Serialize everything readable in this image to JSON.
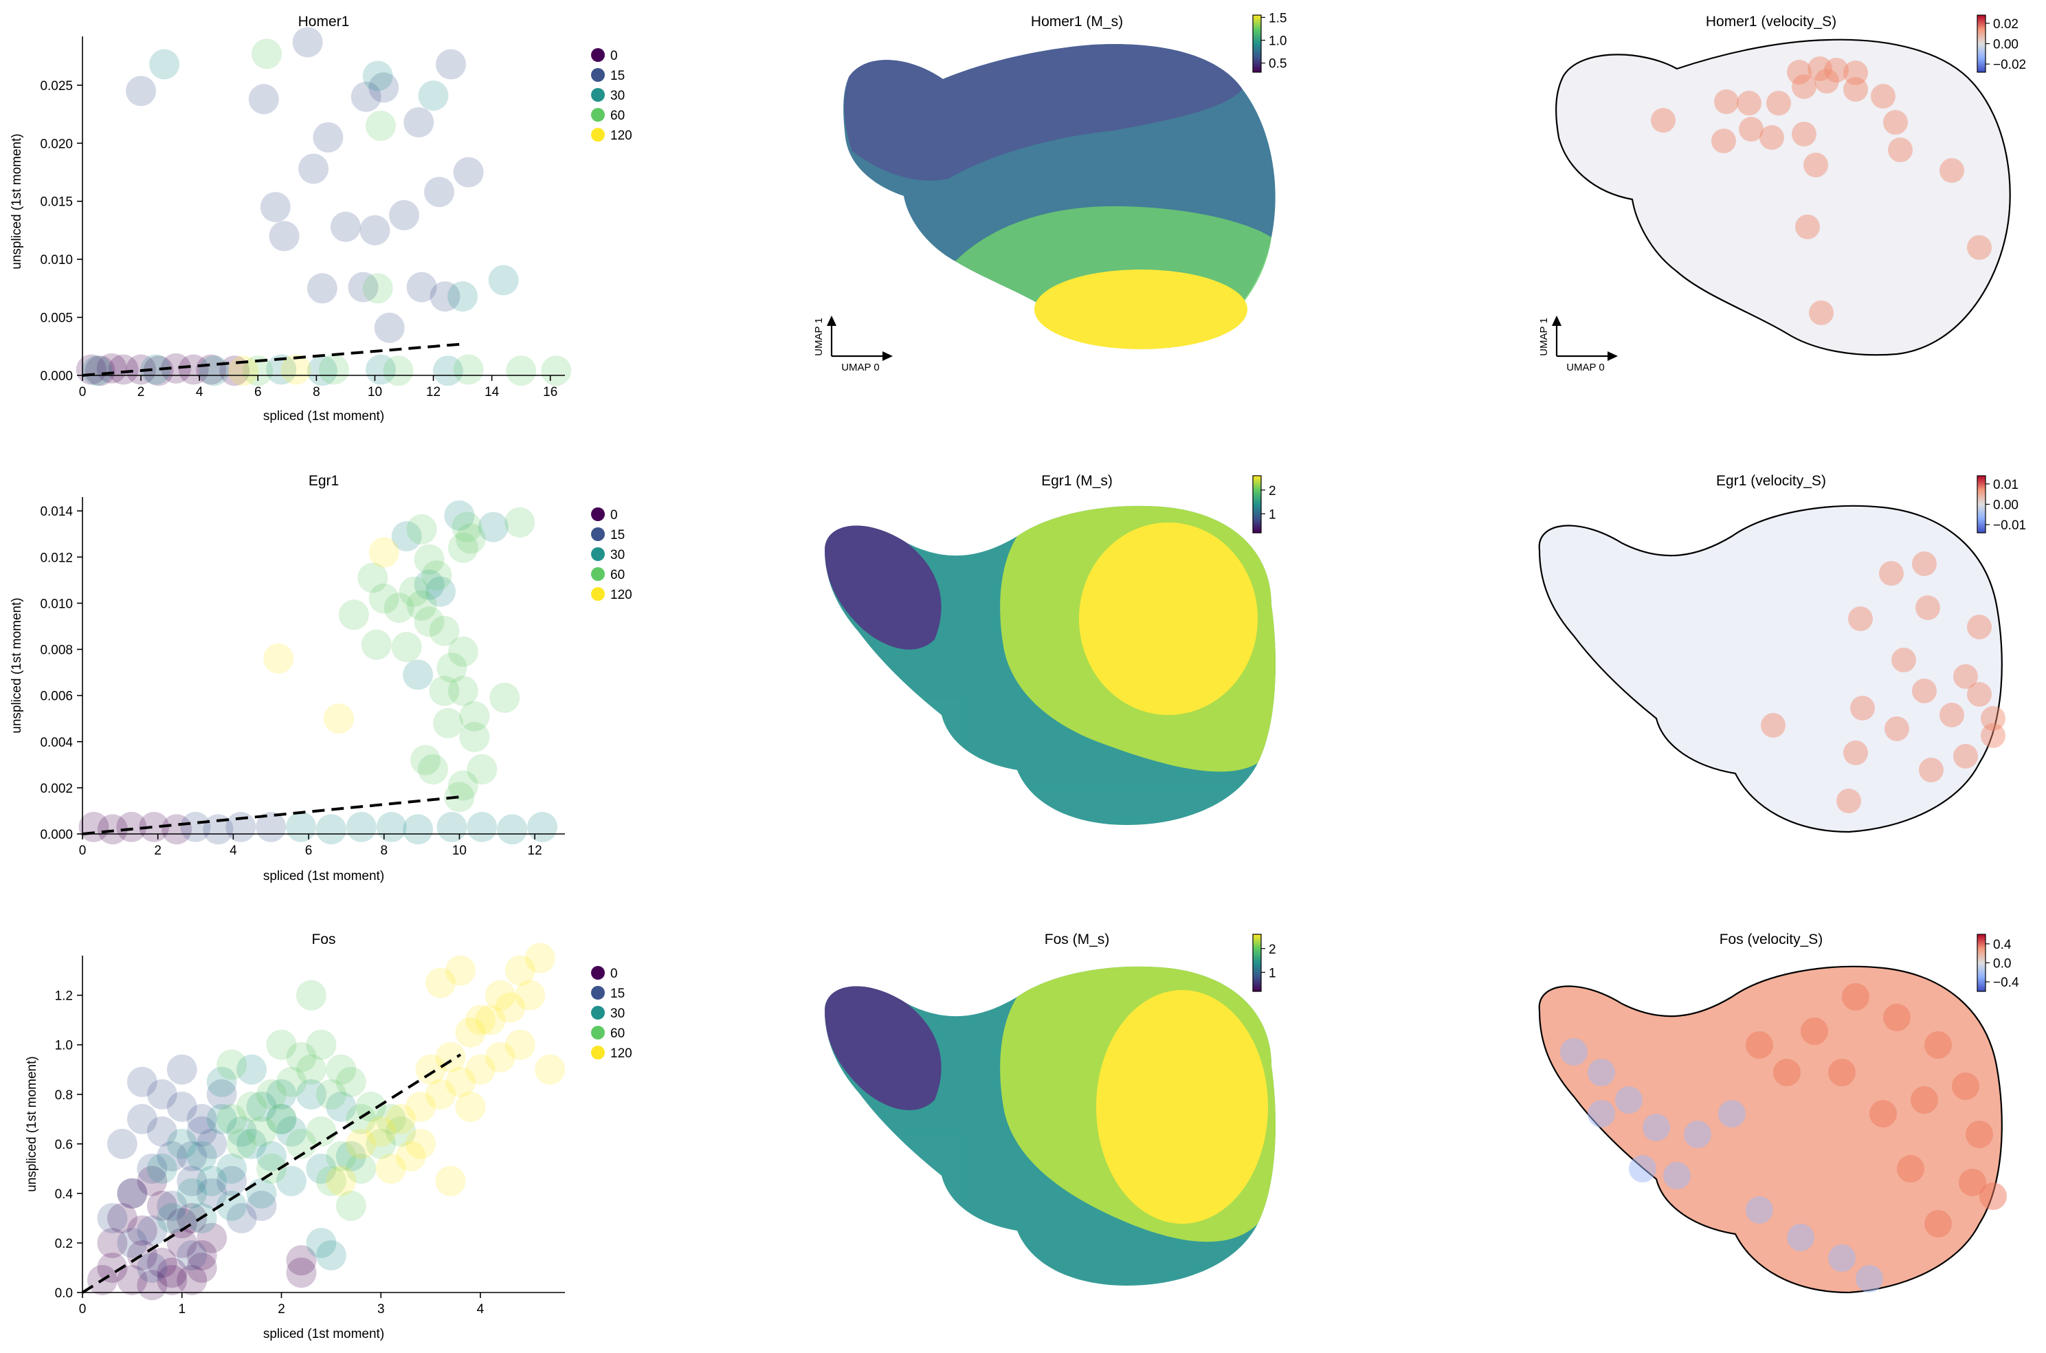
{
  "chart_data": [
    {
      "type": "scatter",
      "title": "Homer1",
      "xlabel": "spliced (1st moment)",
      "ylabel": "unspliced (1st moment)",
      "xlim": [
        0,
        16.5
      ],
      "ylim": [
        0,
        0.0292
      ],
      "xticks": [
        0,
        2,
        4,
        6,
        8,
        10,
        12,
        14,
        16
      ],
      "xtick_labels": [
        "0",
        "2",
        "4",
        "6",
        "8",
        "10",
        "12",
        "14",
        "16"
      ],
      "yticks": [
        0,
        0.005,
        0.01,
        0.015,
        0.02,
        0.025
      ],
      "ytick_labels": [
        "0.000",
        "0.005",
        "0.010",
        "0.015",
        "0.020",
        "0.025"
      ],
      "legend": {
        "placement": "outside-right",
        "entries": [
          "0",
          "15",
          "30",
          "60",
          "120"
        ],
        "colors": [
          "#440154",
          "#3b528b",
          "#21918c",
          "#5ec962",
          "#fde725"
        ]
      },
      "fit_line": {
        "style": "dashed",
        "color": "#000000",
        "x": [
          0,
          13.0
        ],
        "y": [
          0,
          0.0027
        ]
      },
      "series": [
        {
          "name": "0",
          "color": "#440154",
          "x": [
            0.3,
            0.6,
            1.0,
            1.4,
            2.0,
            2.6,
            3.2,
            3.8,
            4.4,
            5.2
          ],
          "y": [
            0.0005,
            0.0004,
            0.0006,
            0.0005,
            0.0005,
            0.0004,
            0.0006,
            0.0005,
            0.0005,
            0.0004
          ]
        },
        {
          "name": "15",
          "color": "#3b528b",
          "x": [
            2.0,
            6.2,
            6.6,
            7.9,
            9.0,
            10.0,
            11.0,
            12.2,
            8.2,
            9.6,
            10.5,
            11.6,
            12.4,
            6.9,
            7.7,
            10.3,
            11.5,
            8.4,
            9.7,
            13.2,
            12.6
          ],
          "y": [
            0.0245,
            0.0238,
            0.0145,
            0.0178,
            0.0128,
            0.0125,
            0.0138,
            0.0158,
            0.0075,
            0.0076,
            0.0041,
            0.0076,
            0.0068,
            0.012,
            0.0287,
            0.0248,
            0.0218,
            0.0205,
            0.024,
            0.0175,
            0.0268
          ]
        },
        {
          "name": "30",
          "color": "#21918c",
          "x": [
            0.5,
            2.5,
            4.5,
            6.8,
            8.2,
            10.2,
            12.5,
            2.8,
            10.1,
            12.0,
            13.0,
            14.4
          ],
          "y": [
            0.0004,
            0.0005,
            0.0004,
            0.0005,
            0.0004,
            0.0005,
            0.0004,
            0.0268,
            0.0258,
            0.0241,
            0.0068,
            0.0082
          ]
        },
        {
          "name": "60",
          "color": "#5ec962",
          "x": [
            6.0,
            8.6,
            10.8,
            13.2,
            15.0,
            16.2,
            6.3,
            10.2,
            10.1
          ],
          "y": [
            0.0004,
            0.0005,
            0.0004,
            0.0005,
            0.0004,
            0.0004,
            0.0277,
            0.0215,
            0.0075
          ]
        },
        {
          "name": "120",
          "color": "#fde725",
          "x": [
            5.5,
            7.3
          ],
          "y": [
            0.0004,
            0.0005
          ]
        }
      ]
    },
    {
      "type": "scatter",
      "title": "Homer1 (M_s)",
      "axis_labels": [
        "UMAP 0",
        "UMAP 1"
      ],
      "colorbar": {
        "colormap": "viridis",
        "range": [
          0.3,
          1.55
        ],
        "ticks": [
          0.5,
          1.0,
          1.5
        ],
        "tick_labels": [
          "0.5",
          "1.0",
          "1.5"
        ]
      }
    },
    {
      "type": "scatter",
      "title": "Homer1 (velocity_S)",
      "axis_labels": [
        "UMAP 0",
        "UMAP 1"
      ],
      "colorbar": {
        "colormap": "coolwarm",
        "range": [
          -0.028,
          0.028
        ],
        "ticks": [
          0.02,
          0.0,
          -0.02
        ],
        "tick_labels": [
          "0.02",
          "0.00",
          "−0.02"
        ]
      }
    },
    {
      "type": "scatter",
      "title": "Egr1",
      "xlabel": "spliced (1st moment)",
      "ylabel": "unspliced (1st moment)",
      "xlim": [
        0,
        12.8
      ],
      "ylim": [
        0,
        0.0146
      ],
      "xticks": [
        0,
        2,
        4,
        6,
        8,
        10,
        12
      ],
      "xtick_labels": [
        "0",
        "2",
        "4",
        "6",
        "8",
        "10",
        "12"
      ],
      "yticks": [
        0,
        0.002,
        0.004,
        0.006,
        0.008,
        0.01,
        0.012,
        0.014
      ],
      "ytick_labels": [
        "0.000",
        "0.002",
        "0.004",
        "0.006",
        "0.008",
        "0.010",
        "0.012",
        "0.014"
      ],
      "legend": {
        "placement": "outside-right",
        "entries": [
          "0",
          "15",
          "30",
          "60",
          "120"
        ],
        "colors": [
          "#440154",
          "#3b528b",
          "#21918c",
          "#5ec962",
          "#fde725"
        ]
      },
      "fit_line": {
        "style": "dashed",
        "color": "#000000",
        "x": [
          0,
          10.0
        ],
        "y": [
          0,
          0.0016
        ]
      },
      "series": [
        {
          "name": "0",
          "color": "#440154",
          "x": [
            0.3,
            0.8,
            1.3,
            1.9,
            2.5
          ],
          "y": [
            0.0003,
            0.0002,
            0.0003,
            0.0003,
            0.0002
          ]
        },
        {
          "name": "15",
          "color": "#3b528b",
          "x": [
            3.0,
            3.6,
            4.2,
            5.0
          ],
          "y": [
            0.0003,
            0.0002,
            0.0003,
            0.0003
          ]
        },
        {
          "name": "30",
          "color": "#21918c",
          "x": [
            5.8,
            6.6,
            7.4,
            8.2,
            8.9,
            9.8,
            10.6,
            11.4,
            12.2,
            8.6,
            9.2,
            10.0,
            10.9,
            8.9,
            9.5
          ],
          "y": [
            0.0003,
            0.0002,
            0.0003,
            0.0003,
            0.0002,
            0.0003,
            0.0003,
            0.0002,
            0.0003,
            0.0129,
            0.0108,
            0.0138,
            0.0133,
            0.0069,
            0.0105
          ]
        },
        {
          "name": "60",
          "color": "#5ec962",
          "x": [
            7.2,
            7.8,
            8.0,
            8.4,
            8.6,
            9.0,
            9.2,
            9.4,
            9.6,
            10.1,
            9.8,
            9.0,
            10.1,
            10.4,
            9.7,
            9.1,
            9.3,
            10.1,
            10.4,
            10.0,
            11.2,
            10.6,
            9.6,
            8.8,
            10.2,
            10.1,
            7.7,
            9.2,
            10.3,
            11.6
          ],
          "y": [
            0.0095,
            0.0082,
            0.0102,
            0.0098,
            0.0081,
            0.0099,
            0.0119,
            0.0112,
            0.0088,
            0.0079,
            0.0072,
            0.0132,
            0.0062,
            0.0051,
            0.0048,
            0.0032,
            0.0028,
            0.0021,
            0.0042,
            0.0016,
            0.0059,
            0.0028,
            0.0062,
            0.0105,
            0.0133,
            0.0124,
            0.0111,
            0.0092,
            0.0128,
            0.0135
          ]
        },
        {
          "name": "120",
          "color": "#fde725",
          "x": [
            5.2,
            6.8,
            8.0
          ],
          "y": [
            0.0076,
            0.005,
            0.0122
          ]
        }
      ]
    },
    {
      "type": "scatter",
      "title": "Egr1 (M_s)",
      "axis_labels": [],
      "colorbar": {
        "colormap": "viridis",
        "range": [
          0.2,
          2.6
        ],
        "ticks": [
          1,
          2
        ],
        "tick_labels": [
          "1",
          "2"
        ]
      }
    },
    {
      "type": "scatter",
      "title": "Egr1 (velocity_S)",
      "axis_labels": [],
      "colorbar": {
        "colormap": "coolwarm",
        "range": [
          -0.014,
          0.014
        ],
        "ticks": [
          0.01,
          0.0,
          -0.01
        ],
        "tick_labels": [
          "0.01",
          "0.00",
          "−0.01"
        ]
      }
    },
    {
      "type": "scatter",
      "title": "Fos",
      "xlabel": "spliced (1st moment)",
      "ylabel": "unspliced (1st moment)",
      "xlim": [
        0,
        4.85
      ],
      "ylim": [
        0,
        1.36
      ],
      "xticks": [
        0,
        1,
        2,
        3,
        4
      ],
      "xtick_labels": [
        "0",
        "1",
        "2",
        "3",
        "4"
      ],
      "yticks": [
        0,
        0.2,
        0.4,
        0.6,
        0.8,
        1.0,
        1.2
      ],
      "ytick_labels": [
        "0.0",
        "0.2",
        "0.4",
        "0.6",
        "0.8",
        "1.0",
        "1.2"
      ],
      "legend": {
        "placement": "outside-right",
        "entries": [
          "0",
          "15",
          "30",
          "60",
          "120"
        ],
        "colors": [
          "#440154",
          "#3b528b",
          "#21918c",
          "#5ec962",
          "#fde725"
        ]
      },
      "fit_line": {
        "style": "dashed",
        "color": "#000000",
        "x": [
          0,
          3.8
        ],
        "y": [
          0,
          0.96
        ]
      },
      "series": [
        {
          "name": "0",
          "color": "#440154",
          "x": [
            0.3,
            0.5,
            0.6,
            0.7,
            0.8,
            0.9,
            1.0,
            1.1,
            1.2,
            0.4,
            0.6,
            0.8,
            1.0,
            1.2,
            0.5,
            0.7,
            0.9,
            1.1,
            1.3,
            0.3,
            0.2,
            2.2,
            2.2
          ],
          "y": [
            0.1,
            0.05,
            0.15,
            0.03,
            0.12,
            0.08,
            0.2,
            0.05,
            0.15,
            0.3,
            0.25,
            0.35,
            0.28,
            0.1,
            0.4,
            0.45,
            0.05,
            0.3,
            0.22,
            0.2,
            0.05,
            0.08,
            0.13
          ]
        },
        {
          "name": "15",
          "color": "#3b528b",
          "x": [
            0.3,
            0.5,
            0.7,
            0.9,
            1.1,
            1.3,
            0.4,
            0.6,
            0.8,
            1.0,
            1.2,
            1.4,
            0.5,
            0.7,
            0.9,
            1.1,
            1.3,
            0.6,
            0.8,
            1.0,
            1.2,
            0.7,
            1.1,
            1.5,
            1.6,
            1.8
          ],
          "y": [
            0.3,
            0.4,
            0.5,
            0.55,
            0.45,
            0.6,
            0.6,
            0.7,
            0.65,
            0.75,
            0.7,
            0.8,
            0.2,
            0.25,
            0.35,
            0.15,
            0.4,
            0.85,
            0.8,
            0.9,
            0.65,
            0.1,
            0.55,
            0.45,
            0.3,
            0.35
          ]
        },
        {
          "name": "30",
          "color": "#21918c",
          "x": [
            0.8,
            1.0,
            1.2,
            1.4,
            1.6,
            1.8,
            2.0,
            1.1,
            1.3,
            1.5,
            1.7,
            1.9,
            2.1,
            0.9,
            1.2,
            1.5,
            1.8,
            2.1,
            2.4,
            2.7,
            1.4,
            1.7,
            2.0,
            2.3,
            2.6,
            2.4,
            2.5
          ],
          "y": [
            0.5,
            0.6,
            0.55,
            0.7,
            0.65,
            0.75,
            0.8,
            0.4,
            0.45,
            0.5,
            0.6,
            0.55,
            0.65,
            0.3,
            0.3,
            0.35,
            0.4,
            0.45,
            0.5,
            0.55,
            0.85,
            0.9,
            0.7,
            0.8,
            0.75,
            0.2,
            0.15
          ]
        },
        {
          "name": "60",
          "color": "#5ec962",
          "x": [
            1.5,
            1.7,
            1.9,
            2.1,
            2.3,
            2.5,
            2.7,
            2.9,
            3.1,
            1.6,
            1.8,
            2.0,
            2.2,
            2.4,
            2.6,
            2.8,
            3.0,
            2.0,
            2.2,
            2.4,
            2.6,
            2.8,
            3.2,
            1.5,
            1.9,
            2.5,
            2.3,
            2.7
          ],
          "y": [
            0.7,
            0.75,
            0.8,
            0.85,
            0.9,
            0.8,
            0.85,
            0.75,
            0.7,
            0.6,
            0.65,
            0.7,
            0.6,
            0.65,
            0.55,
            0.5,
            0.6,
            1.0,
            0.95,
            1.0,
            0.9,
            0.7,
            0.65,
            0.92,
            0.5,
            0.45,
            1.2,
            0.35
          ]
        },
        {
          "name": "120",
          "color": "#fde725",
          "x": [
            2.8,
            3.0,
            3.2,
            3.4,
            3.6,
            3.8,
            4.0,
            4.2,
            4.4,
            3.1,
            3.3,
            3.5,
            3.7,
            3.9,
            4.1,
            4.3,
            4.5,
            3.6,
            3.8,
            4.0,
            4.2,
            4.4,
            4.6,
            2.6,
            3.4,
            4.7,
            3.9,
            3.7
          ],
          "y": [
            0.6,
            0.65,
            0.7,
            0.75,
            0.8,
            0.85,
            0.9,
            0.95,
            1.0,
            0.5,
            0.55,
            0.9,
            0.95,
            1.05,
            1.1,
            1.15,
            1.2,
            1.25,
            1.3,
            1.1,
            1.2,
            1.3,
            1.35,
            0.45,
            0.6,
            0.9,
            0.75,
            0.45
          ]
        }
      ]
    },
    {
      "type": "scatter",
      "title": "Fos (M_s)",
      "axis_labels": [],
      "colorbar": {
        "colormap": "viridis",
        "range": [
          0.2,
          2.6
        ],
        "ticks": [
          1,
          2
        ],
        "tick_labels": [
          "1",
          "2"
        ]
      }
    },
    {
      "type": "scatter",
      "title": "Fos (velocity_S)",
      "axis_labels": [],
      "colorbar": {
        "colormap": "coolwarm",
        "range": [
          -0.6,
          0.6
        ],
        "ticks": [
          0.4,
          0.0,
          -0.4
        ],
        "tick_labels": [
          "0.4",
          "0.0",
          "−0.4"
        ]
      }
    }
  ]
}
